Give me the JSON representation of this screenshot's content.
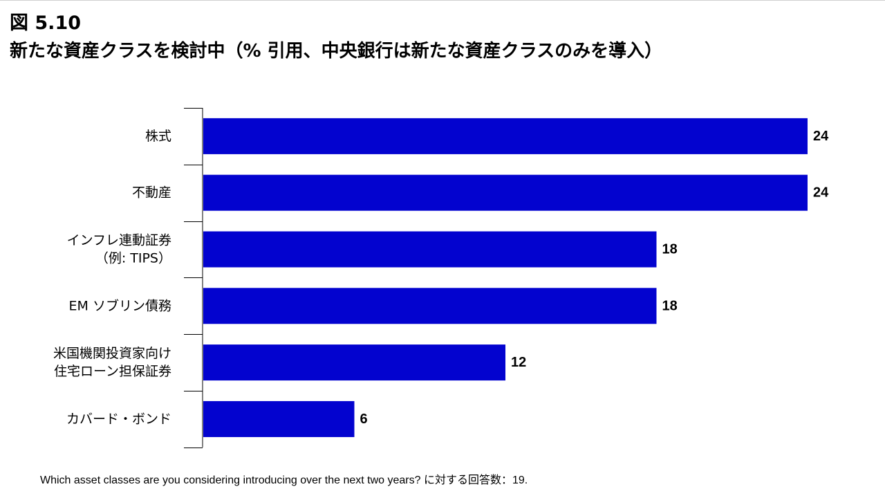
{
  "header": {
    "figure_label": "図 5.10",
    "title": "新たな資産クラスを検討中（% 引用、中央銀行は新たな資産クラスのみを導入）"
  },
  "chart_data": {
    "type": "bar",
    "orientation": "horizontal",
    "categories": [
      [
        "株式"
      ],
      [
        "不動産"
      ],
      [
        "インフレ連動証券",
        "（例: TIPS）"
      ],
      [
        "EM ソブリン債務"
      ],
      [
        "米国機関投資家向け",
        "住宅ローン担保証券"
      ],
      [
        "カバード・ボンド"
      ]
    ],
    "values": [
      24,
      24,
      18,
      18,
      12,
      6
    ],
    "data_labels": [
      "24",
      "24",
      "18",
      "18",
      "12",
      "6"
    ],
    "xlim": [
      0,
      24
    ],
    "bar_color": "#0303cf",
    "grid": false,
    "legend": "none"
  },
  "footnote": "Which asset classes are you considering introducing over the next two years? に対する回答数：19."
}
